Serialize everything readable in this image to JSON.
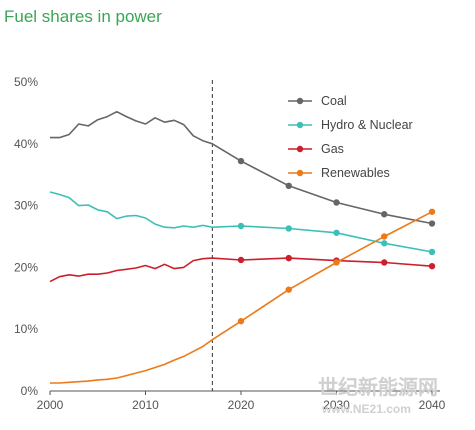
{
  "watermark": {
    "line1": "世纪新能源网",
    "line2": "www.NE21.com"
  },
  "chart_data": {
    "type": "line",
    "title": "Fuel shares in power",
    "xlabel": "",
    "ylabel": "",
    "xlim": [
      2000,
      2040
    ],
    "ylim": [
      0,
      50
    ],
    "x_ticks": [
      "2000",
      "2010",
      "2020",
      "2030",
      "2040"
    ],
    "y_ticks": [
      "0%",
      "10%",
      "20%",
      "30%",
      "40%",
      "50%"
    ],
    "grid": false,
    "legend_position": "top-right",
    "projection_divider_x": 2017,
    "series": [
      {
        "name": "Coal",
        "color": "#666666",
        "x": [
          2000,
          2001,
          2002,
          2003,
          2004,
          2005,
          2006,
          2007,
          2008,
          2009,
          2010,
          2011,
          2012,
          2013,
          2014,
          2015,
          2016,
          2017,
          2020,
          2025,
          2030,
          2035,
          2040
        ],
        "values": [
          41.0,
          41.0,
          41.5,
          43.2,
          42.9,
          43.9,
          44.4,
          45.2,
          44.4,
          43.7,
          43.2,
          44.2,
          43.5,
          43.8,
          43.1,
          41.3,
          40.5,
          40.0,
          37.2,
          33.2,
          30.5,
          28.6,
          27.1
        ],
        "marker_x": [
          2020,
          2025,
          2030,
          2035,
          2040
        ]
      },
      {
        "name": "Hydro & Nuclear",
        "color": "#3dbfb8",
        "x": [
          2000,
          2001,
          2002,
          2003,
          2004,
          2005,
          2006,
          2007,
          2008,
          2009,
          2010,
          2011,
          2012,
          2013,
          2014,
          2015,
          2016,
          2017,
          2020,
          2025,
          2030,
          2035,
          2040
        ],
        "values": [
          32.2,
          31.8,
          31.3,
          30.0,
          30.1,
          29.3,
          29.0,
          27.9,
          28.3,
          28.4,
          28.0,
          27.0,
          26.5,
          26.4,
          26.7,
          26.5,
          26.8,
          26.5,
          26.7,
          26.3,
          25.6,
          23.9,
          22.5
        ],
        "marker_x": [
          2020,
          2025,
          2030,
          2035,
          2040
        ]
      },
      {
        "name": "Gas",
        "color": "#cc1f2b",
        "x": [
          2000,
          2001,
          2002,
          2003,
          2004,
          2005,
          2006,
          2007,
          2008,
          2009,
          2010,
          2011,
          2012,
          2013,
          2014,
          2015,
          2016,
          2017,
          2020,
          2025,
          2030,
          2035,
          2040
        ],
        "values": [
          17.7,
          18.5,
          18.8,
          18.6,
          18.9,
          18.9,
          19.1,
          19.5,
          19.7,
          19.9,
          20.3,
          19.8,
          20.5,
          19.8,
          20.0,
          21.1,
          21.4,
          21.5,
          21.2,
          21.5,
          21.1,
          20.8,
          20.2
        ],
        "marker_x": [
          2020,
          2025,
          2030,
          2035,
          2040
        ]
      },
      {
        "name": "Renewables",
        "color": "#ec7a1a",
        "x": [
          2000,
          2001,
          2002,
          2003,
          2004,
          2005,
          2006,
          2007,
          2008,
          2009,
          2010,
          2011,
          2012,
          2013,
          2014,
          2015,
          2016,
          2017,
          2020,
          2025,
          2030,
          2035,
          2040
        ],
        "values": [
          1.3,
          1.3,
          1.4,
          1.5,
          1.6,
          1.8,
          1.9,
          2.1,
          2.5,
          2.9,
          3.3,
          3.8,
          4.3,
          5.0,
          5.6,
          6.4,
          7.2,
          8.3,
          11.3,
          16.4,
          20.8,
          25.0,
          29.0
        ],
        "marker_x": [
          2020,
          2025,
          2030,
          2035,
          2040
        ]
      }
    ]
  }
}
